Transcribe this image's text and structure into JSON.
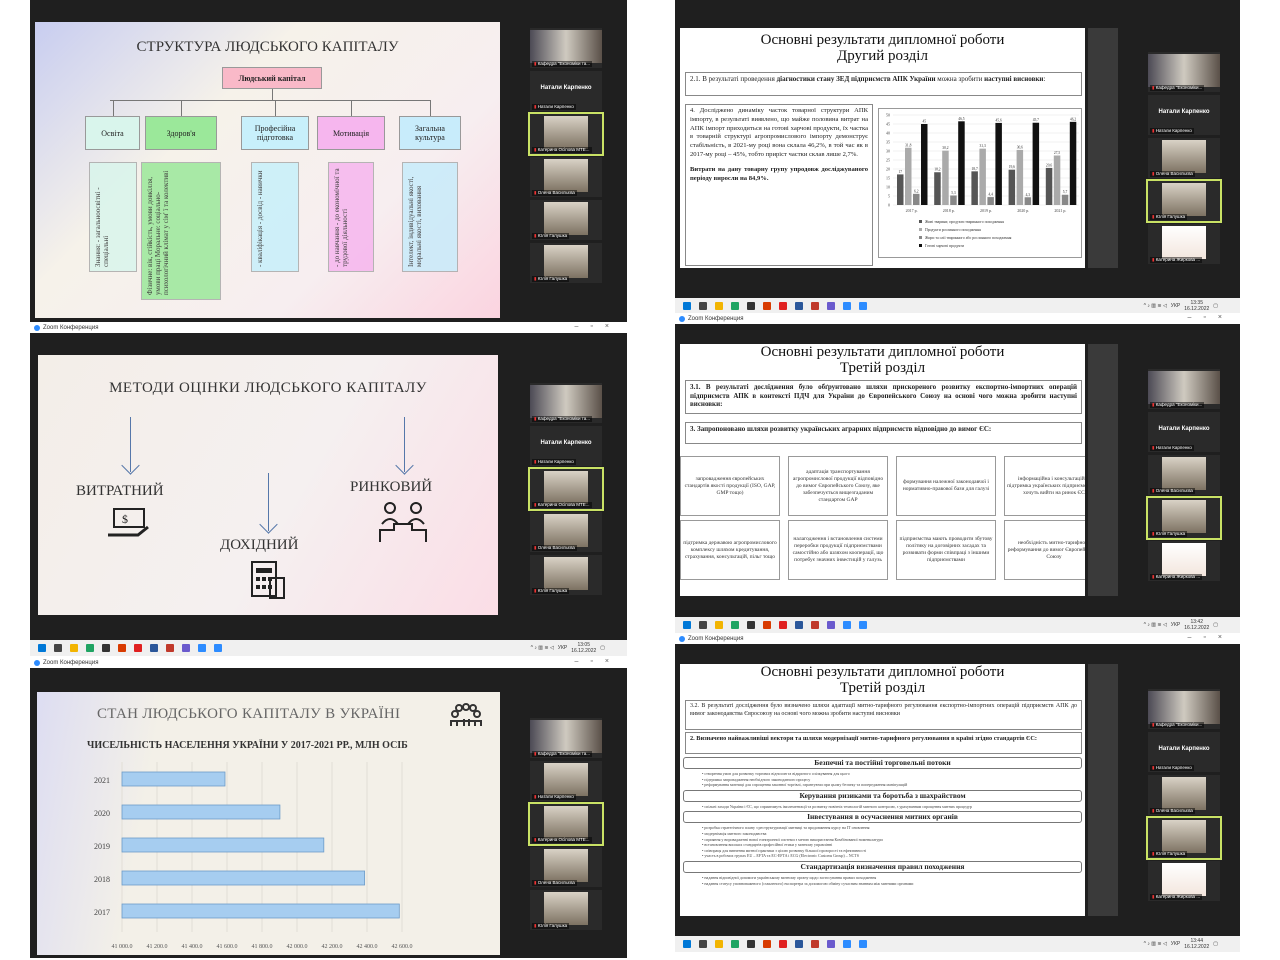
{
  "app": {
    "window_title": "Zoom Конференция",
    "language": "УКР",
    "date": "16.12.2022",
    "times": [
      "13:05",
      "13:35",
      "13:42",
      "13:44"
    ]
  },
  "participants_left": [
    {
      "name": "Кафедра \"Економіки та...",
      "video": "wide"
    },
    {
      "name": "Натали Карпенко",
      "video": "none",
      "big": "Натали Карпенко"
    },
    {
      "name": "Катерина Осіпова МТЕ...",
      "video": "person",
      "active": true
    },
    {
      "name": "Олена Васильєва",
      "video": "person"
    },
    {
      "name": "Юлія Галушка",
      "video": "person"
    },
    {
      "name": "Юлія Галушка",
      "video": "person"
    }
  ],
  "participants_left3": [
    {
      "name": "Кафедра \"Економіки та...",
      "video": "wide"
    },
    {
      "name": "Натали Карпенко",
      "video": "person"
    },
    {
      "name": "Катерина Осіпова МТЕ...",
      "video": "person",
      "active": true
    },
    {
      "name": "Олена Васильєва",
      "video": "person"
    },
    {
      "name": "Юлія Галушка",
      "video": "person"
    }
  ],
  "participants_right": [
    {
      "name": "Кафедра \"Економіки...",
      "video": "wide"
    },
    {
      "name": "Натали Карпенко",
      "video": "none",
      "big": "Натали Карпенко"
    },
    {
      "name": "Олена Васильєва",
      "video": "person"
    },
    {
      "name": "Юлія Галушка",
      "video": "person",
      "active": true
    },
    {
      "name": "Катерина Жиркова ...",
      "video": "avatar"
    }
  ],
  "slide_structure": {
    "title": "СТРУКТУРА ЛЮДСЬКОГО КАПІТАЛУ",
    "root": "Людський капітал",
    "branches": [
      {
        "label": "Освіта",
        "color": "#d9f5ec",
        "detail": "Знання: - загальноосвітні - спеціальні"
      },
      {
        "label": "Здоров'я",
        "color": "#9be89a",
        "detail": "Фізичне: вік, стійкість, умови довкілля, умови праці Моральне: соціально-психологічний клімат у сім' ї та колективі"
      },
      {
        "label": "Професійна підготовка",
        "color": "#c8f0fb",
        "detail": "- кваліфікація - досвід - навички"
      },
      {
        "label": "Мотивація",
        "color": "#f6b6ee",
        "detail": "- до навчання - до економічної та трудової діяльності"
      },
      {
        "label": "Загальна культура",
        "color": "#c8ecfb",
        "detail": "Інтелект, індивідуальні якості, моральні якості, виховання"
      }
    ]
  },
  "slide_methods": {
    "title": "МЕТОДИ ОЦІНКИ ЛЮДСЬКОГО КАПІТАЛУ",
    "methods": [
      {
        "label": "ВИТРАТНИЙ",
        "icon": "money-hand-icon"
      },
      {
        "label": "ДОХІДНИЙ",
        "icon": "calculator-icon"
      },
      {
        "label": "РИНКОВИЙ",
        "icon": "people-podium-icon"
      }
    ]
  },
  "slide_population": {
    "title": "СТАН ЛЮДСЬКОГО КАПІТАЛУ В УКРАЇНІ",
    "icon": "people-group-icon"
  },
  "slide_second": {
    "title1": "Основні результати дипломної роботи",
    "title2": "Другий розділ",
    "intro_a": "2.1. В результаті проведення ",
    "intro_b": "діагностики стану ЗЕД підприємств АПК України",
    "intro_c": " можна зробити ",
    "intro_d": "наступні висновки",
    "intro_e": ":",
    "p1": "4. Досліджено динаміку часток товарної структури АПК імпорту, в результаті виявлено, що майже половина витрат на АПК імпорт приходиться на готові харчові продукти, їх частка в товарній структурі агропромислового імпорту демонструє стабільність, в 2021-му році вона склала 46,2%, в той час як в 2017-му році – 45%, тобто приріст частки склав лише 2,7%.",
    "p2": "Витрати на дану товарну групу упродовж досліджуваного періоду виросли на 84,9%."
  },
  "slide_third_a": {
    "title1": "Основні результати дипломної роботи",
    "title2": "Третій розділ",
    "intro": "3.1. В результаті дослідження було обґрунтовано шляхи прискореного розвитку експортно-імпортних операцій підприємств АПК в контексті ПДЧ для України до Європейського Союзу на основі чого можна зробити наступні висновки:",
    "point": "3. Запропоновано шляхи розвитку українських аграрних підприємств відповідно до вимог ЄС:",
    "cells": [
      "запровадження європейських стандартів якості продукції (ISO, GAP, GMP тощо)",
      "адаптація транспортування агропромислової продукції відповідно до вимог Європейського Союзу, яке забезпечується вищезгаданим стандартом GAP",
      "формування належної законодавчої і нормативно-правової бази для галузі",
      "інформаційна і консультаційна підтримка українських підприємств, які хочуть вийти на ринок ЄС",
      "підтримка державою агропромислового комплексу шляхом кредитування, страхування, консультацій, пільг тощо",
      "налагодження і встановлення системи переробки продукції підприємствами самостійно або шляхом кооперації, що потребує значних інвестицій у галузь",
      "підприємства мають проводити збутову політику на договірних засадах та розвивати форми співпраці з іншими підприємствами",
      "необхідність митно-тарифного реформування до вимог Європейського Союзу"
    ]
  },
  "slide_third_b": {
    "title1": "Основні результати дипломної роботи",
    "title2": "Третій розділ",
    "intro": "3.2. В результаті дослідження було визначено шляхи адаптації митно-тарифного регулювання експортно-імпортних операцій підприємств АПК до вимог законодавства Євросоюзу на основі чого можна зробити наступні висновки",
    "point": "2. Визначено найважливіші вектори та шляхи модернізації митно-тарифного регулювання в країні згідно стандартів ЄС:",
    "sections": [
      {
        "title": "Безпечні та постійні торговельні потоки",
        "bullets": [
          "створення умов для розвитку торгових відносин та відкритого спілкування для цього",
          "підтримка запровадження необхідного законодавчого процесу",
          "реформування митниці для спрощення законної торгівлі, гарантуючи при цьому безпеку та попередження маніпуляцій"
        ]
      },
      {
        "title": "Керування ризиками та боротьба з шахрайством",
        "bullets": [
          "спільні заходи України і ЄС, що сприятимуть імплементації та розвитку новітніх технологій митного контролю, з урахуванням спрощення митних процедур"
        ]
      },
      {
        "title": "Інвестування в осучаснення митних органів",
        "bullets": [
          "розробка стратегічного плану з реструктуризації митниці та продовження курсу на ІТ оновлення",
          "модернізація митного законодавства",
          "сприяння у впровадженні нової електронної системи з метою використання Комбінованої номенклатури",
          "встановлення високих стандартів професійної етики у митному управлінні",
          "співпраця для вивчення митної практики з ціллю розвитку більшої прозорості та ефективності",
          "участь в робочих групах EU – EFTA та EC-EFTA і ECG (Electronic Customs Group) – NCTS"
        ]
      },
      {
        "title": "Стандартизація визначення правил походження",
        "bullets": [
          "надання відповідної допомоги українському митному органу щодо застосування правил походження",
          "надання статусу уповноваженого (схваленого) експортера за допомогою обміну сучасним знанням між митними органами"
        ]
      }
    ]
  },
  "chart_data": [
    {
      "type": "bar",
      "orientation": "horizontal",
      "title": "ЧИСЕЛЬНІСТЬ НАСЕЛЕННЯ УКРАЇНИ У 2017-2021 РР., МЛН ОСІБ",
      "categories": [
        "2017",
        "2018",
        "2019",
        "2020",
        "2021"
      ],
      "values": [
        42584.6,
        42386.4,
        42153.2,
        41902.4,
        41588.4
      ],
      "xlim": [
        41000,
        42800
      ],
      "ticks": [
        "41 000.0",
        "41 200.0",
        "41 400.0",
        "41 600.0",
        "41 800.0",
        "42 000.0",
        "42 200.0",
        "42 400.0",
        "42 600.0"
      ],
      "bar_color": "#a6cdf0",
      "grid": true
    },
    {
      "type": "bar",
      "orientation": "vertical",
      "categories": [
        "2017 р.",
        "2018 р.",
        "2019 р.",
        "2020 р.",
        "2021 р."
      ],
      "series": [
        {
          "name": "Живі тварини; продукти тваринного походження",
          "values": [
            17,
            18.2,
            18.7,
            19.6,
            20.6
          ],
          "color": "#555555"
        },
        {
          "name": "Продукти рослинного походження",
          "values": [
            31.8,
            30.2,
            31.3,
            30.6,
            27.5
          ],
          "color": "#aaaaaa"
        },
        {
          "name": "Жири та олії тваринного або рослинного походження",
          "values": [
            6.2,
            5.3,
            4.4,
            4.3,
            5.7
          ],
          "color": "#888888"
        },
        {
          "name": "Готові харчові продукти",
          "values": [
            45,
            46.5,
            45.6,
            45.7,
            46.2
          ],
          "color": "#111111"
        }
      ],
      "ylim": [
        0,
        50
      ],
      "yticks": [
        "0",
        "5",
        "10",
        "15",
        "20",
        "25",
        "30",
        "35",
        "40",
        "45",
        "50"
      ],
      "legend": "bottom",
      "grid": true
    }
  ]
}
